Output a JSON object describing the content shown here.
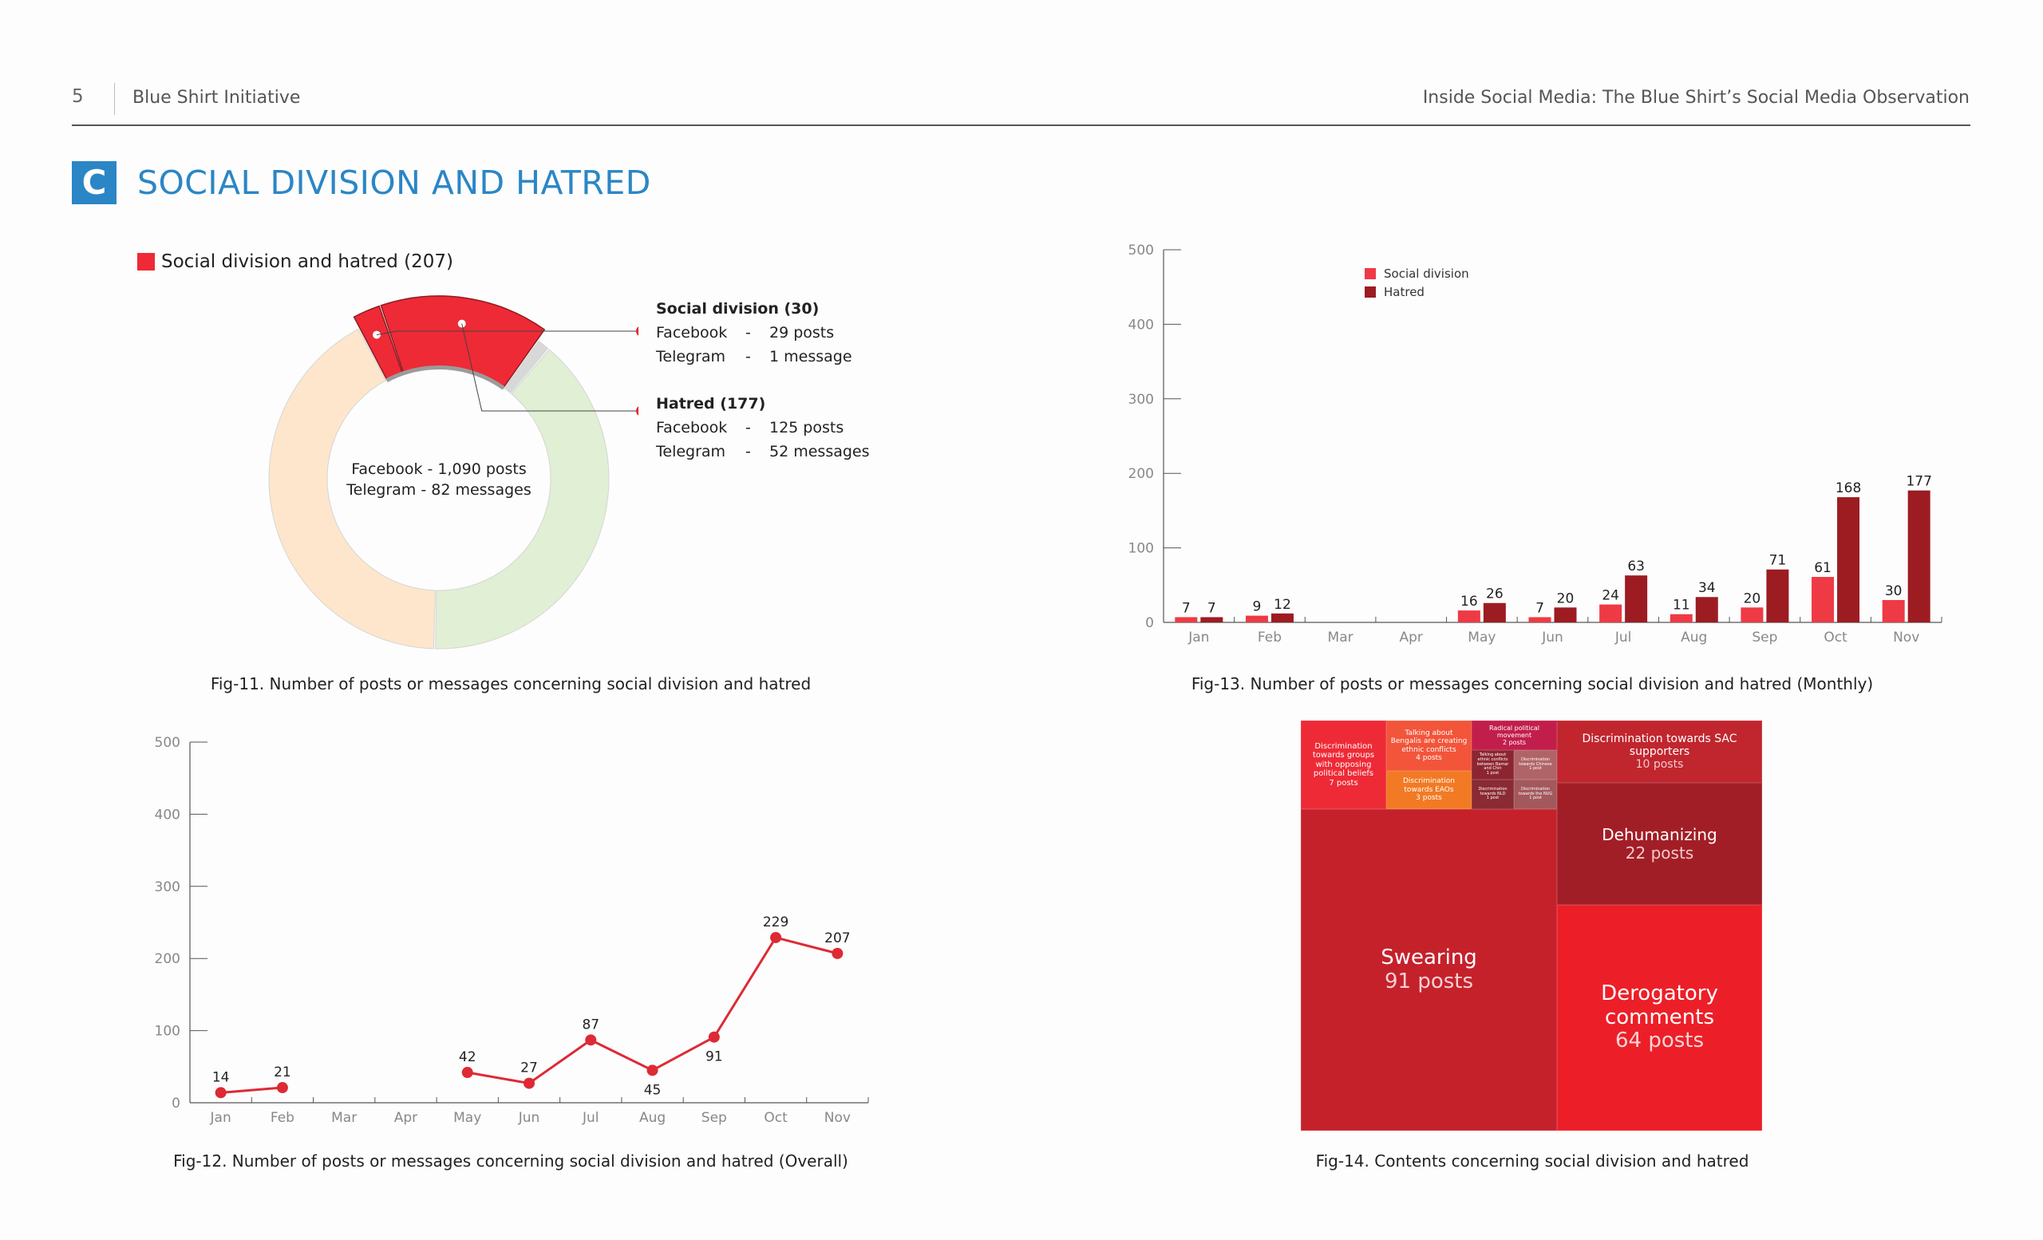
{
  "header": {
    "page_number": "5",
    "left": "Blue Shirt Initiative",
    "right": "Inside Social Media: The Blue Shirt’s Social Media Observation"
  },
  "section": {
    "badge": "C",
    "title": "SOCIAL DIVISION AND HATRED"
  },
  "colors": {
    "accent_blue": "#2b86c5",
    "red": "#ee2a36",
    "dark_red": "#9c1c22",
    "peach": "#fde6cc",
    "light_green": "#e1efd5"
  },
  "chart_data": [
    {
      "type": "pie",
      "title": "Fig-11. Number of posts or messages concerning social division and hatred",
      "legend": "Social division and hatred (207)",
      "center_label": [
        "Facebook - 1,090 posts",
        "Telegram - 82 messages"
      ],
      "slices": [
        {
          "name": "Social division",
          "value": 30,
          "color": "#ee2a36"
        },
        {
          "name": "Hatred",
          "value": 177,
          "color": "#ee2a36"
        },
        {
          "name": "",
          "value": 15,
          "color": "#d8d8d8"
        },
        {
          "name": "",
          "value": 460,
          "color": "#e1efd5"
        },
        {
          "name": "",
          "value": 490,
          "color": "#fde6cc"
        }
      ],
      "callouts": [
        {
          "title": "Social division (30)",
          "rows": [
            {
              "platform": "Facebook",
              "sep": "-",
              "value": "29 posts"
            },
            {
              "platform": "Telegram",
              "sep": "-",
              "value": "1 message"
            }
          ]
        },
        {
          "title": "Hatred (177)",
          "rows": [
            {
              "platform": "Facebook",
              "sep": "-",
              "value": "125 posts"
            },
            {
              "platform": "Telegram",
              "sep": "-",
              "value": "52 messages"
            }
          ]
        }
      ]
    },
    {
      "type": "bar",
      "title": "Fig-13. Number of posts or messages concerning social division and hatred (Monthly)",
      "categories": [
        "Jan",
        "Feb",
        "Mar",
        "Apr",
        "May",
        "Jun",
        "Jul",
        "Aug",
        "Sep",
        "Oct",
        "Nov"
      ],
      "series": [
        {
          "name": "Social division",
          "color": "#ee3a45",
          "values": [
            7,
            9,
            null,
            null,
            16,
            7,
            24,
            11,
            20,
            61,
            30
          ]
        },
        {
          "name": "Hatred",
          "color": "#9c1c22",
          "values": [
            7,
            12,
            null,
            null,
            26,
            20,
            63,
            34,
            71,
            168,
            177
          ]
        }
      ],
      "ylim": [
        0,
        500
      ],
      "yticks": [
        0,
        100,
        200,
        300,
        400,
        500
      ],
      "legend_position": "top-left"
    },
    {
      "type": "line",
      "title": "Fig-12. Number of posts or messages concerning social division and hatred (Overall)",
      "categories": [
        "Jan",
        "Feb",
        "Mar",
        "Apr",
        "May",
        "Jun",
        "Jul",
        "Aug",
        "Sep",
        "Oct",
        "Nov"
      ],
      "series": [
        {
          "color": "#dd2a35",
          "values": [
            14,
            21,
            null,
            null,
            42,
            27,
            87,
            45,
            91,
            229,
            207
          ]
        }
      ],
      "ylim": [
        0,
        500
      ],
      "yticks": [
        0,
        100,
        200,
        300,
        400,
        500
      ]
    },
    {
      "type": "treemap",
      "title": "Fig-14. Contents concerning social division and hatred",
      "items": [
        {
          "label": "Swearing",
          "value_text": "91 posts",
          "value": 91
        },
        {
          "label": "Derogatory comments",
          "value_text": "64 posts",
          "value": 64
        },
        {
          "label": "Dehumanizing",
          "value_text": "22 posts",
          "value": 22
        },
        {
          "label": "Discrimination towards SAC supporters",
          "value_text": "10 posts",
          "value": 10
        },
        {
          "label": "Discrimination towards groups with opposing political beliefs",
          "value_text": "7 posts",
          "value": 7
        },
        {
          "label": "Talking about Bengalis are creating ethnic conflicts",
          "value_text": "4 posts",
          "value": 4
        },
        {
          "label": "Discrimination towards EAOs",
          "value_text": "3 posts",
          "value": 3
        },
        {
          "label": "Radical political movement",
          "value_text": "2 posts",
          "value": 2
        },
        {
          "label": "Talking about ethnic conflicts between Bamar and Chin",
          "value_text": "1 post",
          "value": 1
        },
        {
          "label": "Discrimination towards Chinese",
          "value_text": "1 post",
          "value": 1
        },
        {
          "label": "Discrimination towards NLD",
          "value_text": "1 post",
          "value": 1
        },
        {
          "label": "Discrimination towards the NUG",
          "value_text": "1 post",
          "value": 1
        }
      ]
    }
  ]
}
